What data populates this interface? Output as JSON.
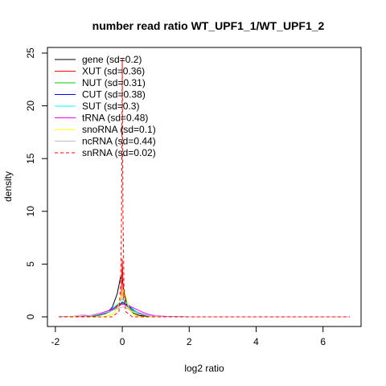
{
  "chart_data": {
    "type": "line",
    "title": "number read ratio WT_UPF1_1/WT_UPF1_2",
    "xlabel": "log2 ratio",
    "ylabel": "density",
    "xlim": [
      -2,
      7
    ],
    "ylim": [
      0,
      25
    ],
    "x_ticks": [
      "-2",
      "0",
      "2",
      "4",
      "6"
    ],
    "y_ticks": [
      "0",
      "5",
      "10",
      "15",
      "20",
      "25"
    ],
    "grid": false,
    "legend_position": "top-left",
    "series": [
      {
        "name": "gene (sd=0.2)",
        "color": "#000000",
        "dash": "solid",
        "points": [
          [
            -1.9,
            0
          ],
          [
            -1.2,
            0.02
          ],
          [
            -0.8,
            0.08
          ],
          [
            -0.5,
            0.3
          ],
          [
            -0.3,
            0.9
          ],
          [
            -0.15,
            2.2
          ],
          [
            -0.05,
            3.8
          ],
          [
            0,
            3.5
          ],
          [
            0.05,
            2.4
          ],
          [
            0.15,
            1.0
          ],
          [
            0.3,
            0.4
          ],
          [
            0.5,
            0.12
          ],
          [
            0.8,
            0.04
          ],
          [
            1.2,
            0.01
          ],
          [
            2,
            0
          ],
          [
            4,
            0
          ],
          [
            6.8,
            0
          ]
        ]
      },
      {
        "name": "XUT (sd=0.36)",
        "color": "#ff0000",
        "dash": "solid",
        "points": [
          [
            -1.9,
            0
          ],
          [
            -1.2,
            0.05
          ],
          [
            -0.8,
            0.12
          ],
          [
            -0.5,
            0.35
          ],
          [
            -0.3,
            0.7
          ],
          [
            -0.1,
            1.2
          ],
          [
            -0.03,
            1.8
          ],
          [
            0,
            5.5
          ],
          [
            0.03,
            1.8
          ],
          [
            0.1,
            1.1
          ],
          [
            0.3,
            0.6
          ],
          [
            0.5,
            0.25
          ],
          [
            0.8,
            0.08
          ],
          [
            1.2,
            0.02
          ],
          [
            2,
            0
          ],
          [
            4,
            0
          ],
          [
            6.8,
            0
          ]
        ]
      },
      {
        "name": "NUT (sd=0.31)",
        "color": "#00cc00",
        "dash": "solid",
        "points": [
          [
            -1.9,
            0
          ],
          [
            -1.2,
            0.04
          ],
          [
            -0.8,
            0.1
          ],
          [
            -0.5,
            0.3
          ],
          [
            -0.3,
            0.6
          ],
          [
            -0.1,
            1.0
          ],
          [
            0,
            1.3
          ],
          [
            0.1,
            1.1
          ],
          [
            0.3,
            0.65
          ],
          [
            0.5,
            0.28
          ],
          [
            0.8,
            0.08
          ],
          [
            1.2,
            0.02
          ],
          [
            2,
            0
          ],
          [
            4,
            0
          ],
          [
            6.8,
            0
          ]
        ]
      },
      {
        "name": "CUT (sd=0.38)",
        "color": "#0000ff",
        "dash": "solid",
        "points": [
          [
            -1.9,
            0
          ],
          [
            -1.2,
            0.05
          ],
          [
            -0.8,
            0.12
          ],
          [
            -0.5,
            0.35
          ],
          [
            -0.3,
            0.7
          ],
          [
            -0.1,
            1.1
          ],
          [
            0,
            1.4
          ],
          [
            0.1,
            1.2
          ],
          [
            0.3,
            0.75
          ],
          [
            0.5,
            0.35
          ],
          [
            0.8,
            0.1
          ],
          [
            1.2,
            0.02
          ],
          [
            2,
            0
          ],
          [
            4,
            0
          ],
          [
            6.8,
            0
          ]
        ]
      },
      {
        "name": "SUT (sd=0.3)",
        "color": "#00ffff",
        "dash": "solid",
        "points": [
          [
            -1.9,
            0
          ],
          [
            -1.2,
            0.05
          ],
          [
            -0.8,
            0.15
          ],
          [
            -0.5,
            0.4
          ],
          [
            -0.3,
            0.8
          ],
          [
            -0.1,
            1.3
          ],
          [
            0,
            1.7
          ],
          [
            0.1,
            1.4
          ],
          [
            0.3,
            0.8
          ],
          [
            0.5,
            0.3
          ],
          [
            0.8,
            0.08
          ],
          [
            1.2,
            0.02
          ],
          [
            2,
            0
          ],
          [
            4,
            0
          ],
          [
            6.8,
            0
          ]
        ]
      },
      {
        "name": "tRNA (sd=0.48)",
        "color": "#ff00ff",
        "dash": "solid",
        "points": [
          [
            -1.9,
            0
          ],
          [
            -1.4,
            0.03
          ],
          [
            -1.0,
            0.1
          ],
          [
            -0.7,
            0.3
          ],
          [
            -0.4,
            0.6
          ],
          [
            -0.2,
            0.9
          ],
          [
            0,
            1.2
          ],
          [
            0.2,
            1.05
          ],
          [
            0.4,
            0.75
          ],
          [
            0.6,
            0.45
          ],
          [
            0.8,
            0.22
          ],
          [
            1.0,
            0.1
          ],
          [
            1.4,
            0.03
          ],
          [
            2,
            0
          ],
          [
            4,
            0
          ],
          [
            6.8,
            0
          ]
        ]
      },
      {
        "name": "snoRNA (sd=0.1)",
        "color": "#ffff00",
        "dash": "solid",
        "points": [
          [
            -1.9,
            0
          ],
          [
            -0.6,
            0
          ],
          [
            -0.3,
            0.2
          ],
          [
            -0.15,
            0.8
          ],
          [
            -0.05,
            1.6
          ],
          [
            0,
            2.2
          ],
          [
            0.05,
            2.6
          ],
          [
            0.1,
            2.0
          ],
          [
            0.2,
            0.8
          ],
          [
            0.35,
            0.15
          ],
          [
            0.6,
            0
          ],
          [
            4,
            0
          ],
          [
            6.8,
            0
          ]
        ]
      },
      {
        "name": "ncRNA (sd=0.44)",
        "color": "#bebebe",
        "dash": "solid",
        "points": [
          [
            -1.9,
            0
          ],
          [
            -1.5,
            0.05
          ],
          [
            -1.3,
            0.15
          ],
          [
            -1.15,
            0.2
          ],
          [
            -1.0,
            0.12
          ],
          [
            -0.8,
            0.15
          ],
          [
            -0.5,
            0.4
          ],
          [
            -0.3,
            0.6
          ],
          [
            -0.1,
            0.85
          ],
          [
            0,
            0.95
          ],
          [
            0.1,
            0.85
          ],
          [
            0.3,
            0.55
          ],
          [
            0.5,
            0.3
          ],
          [
            0.8,
            0.1
          ],
          [
            1.2,
            0.02
          ],
          [
            2,
            0
          ],
          [
            4,
            0
          ],
          [
            6.8,
            0
          ]
        ]
      },
      {
        "name": "snRNA (sd=0.02)",
        "color": "#ff0000",
        "dash": "dashed",
        "points": [
          [
            -1.9,
            0
          ],
          [
            -0.3,
            0
          ],
          [
            -0.1,
            0.5
          ],
          [
            -0.05,
            3.0
          ],
          [
            -0.02,
            10.0
          ],
          [
            0,
            24.5
          ],
          [
            0.02,
            10.0
          ],
          [
            0.05,
            3.0
          ],
          [
            0.1,
            0.5
          ],
          [
            0.3,
            0
          ],
          [
            4,
            0
          ],
          [
            6.8,
            0
          ]
        ]
      }
    ]
  }
}
